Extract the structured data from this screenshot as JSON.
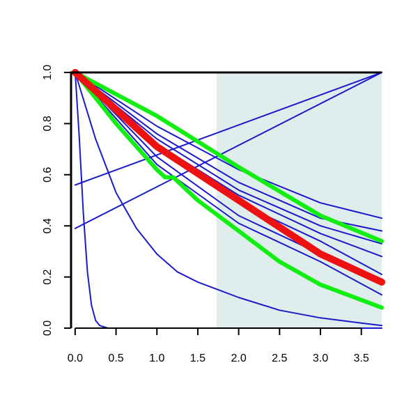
{
  "chart_data": {
    "type": "line",
    "title": "",
    "xlabel": "",
    "ylabel": "",
    "xlim": [
      -0.05,
      3.75
    ],
    "ylim": [
      0.0,
      1.0
    ],
    "x_ticks": [
      0.0,
      0.5,
      1.0,
      1.5,
      2.0,
      2.5,
      3.0,
      3.5
    ],
    "x_tick_labels": [
      "0.0",
      "0.5",
      "1.0",
      "1.5",
      "2.0",
      "2.5",
      "3.0",
      "3.5"
    ],
    "y_ticks": [
      0.0,
      0.2,
      0.4,
      0.6,
      0.8,
      1.0
    ],
    "y_tick_labels": [
      "0.0",
      "0.2",
      "0.4",
      "0.6",
      "0.8",
      "1.0"
    ],
    "grid": false,
    "shaded_region": {
      "x": [
        1.73,
        3.75
      ],
      "color": "#e0eded"
    },
    "colors": {
      "blue": "#1a1acc",
      "red": "#ee1111",
      "green": "#11ee11",
      "axis": "#000000"
    },
    "series": [
      {
        "color": "#1a1acc",
        "width": 2,
        "x": [
          0,
          0.05,
          0.1,
          0.15,
          0.2,
          0.25,
          0.3,
          0.4,
          0.6,
          1,
          2,
          3.75
        ],
        "y": [
          1,
          0.75,
          0.45,
          0.22,
          0.09,
          0.03,
          0.01,
          0,
          0,
          0,
          0,
          0
        ]
      },
      {
        "color": "#1a1acc",
        "width": 2,
        "x": [
          0,
          0.25,
          0.5,
          0.75,
          1,
          1.25,
          1.5,
          1.75,
          2,
          2.5,
          3,
          3.5,
          3.75
        ],
        "y": [
          1,
          0.74,
          0.53,
          0.39,
          0.29,
          0.22,
          0.18,
          0.15,
          0.12,
          0.07,
          0.04,
          0.02,
          0.01
        ]
      },
      {
        "color": "#1a1acc",
        "width": 2,
        "x": [
          0,
          1,
          2,
          3,
          3.75
        ],
        "y": [
          1,
          0.72,
          0.52,
          0.37,
          0.28
        ]
      },
      {
        "color": "#1a1acc",
        "width": 2,
        "x": [
          0,
          1,
          2,
          3,
          3.75
        ],
        "y": [
          1,
          0.79,
          0.62,
          0.49,
          0.43
        ]
      },
      {
        "color": "#1a1acc",
        "width": 2,
        "x": [
          0,
          1,
          2,
          3,
          3.75
        ],
        "y": [
          1,
          0.76,
          0.57,
          0.43,
          0.38
        ]
      },
      {
        "color": "#1a1acc",
        "width": 2,
        "x": [
          0,
          1,
          2,
          3,
          3.75
        ],
        "y": [
          1,
          0.74,
          0.54,
          0.4,
          0.33
        ]
      },
      {
        "color": "#1a1acc",
        "width": 2,
        "x": [
          0,
          1,
          2,
          3,
          3.75
        ],
        "y": [
          1,
          0.7,
          0.49,
          0.34,
          0.21
        ]
      },
      {
        "color": "#1a1acc",
        "width": 2,
        "x": [
          0,
          1,
          2,
          3,
          3.75
        ],
        "y": [
          1,
          0.67,
          0.44,
          0.29,
          0.19
        ]
      },
      {
        "color": "#1a1acc",
        "width": 2,
        "x": [
          0,
          1,
          2,
          3,
          3.75
        ],
        "y": [
          1,
          0.64,
          0.41,
          0.26,
          0.13
        ]
      },
      {
        "color": "#1a1acc",
        "width": 2,
        "x": [
          0,
          3.75
        ],
        "y": [
          0.56,
          1.0
        ]
      },
      {
        "color": "#1a1acc",
        "width": 2,
        "x": [
          0,
          3.75
        ],
        "y": [
          0.39,
          1.0
        ]
      },
      {
        "color": "#11ee11",
        "width": 6,
        "x": [
          0,
          1,
          2,
          3,
          3.75
        ],
        "y": [
          1,
          0.83,
          0.63,
          0.44,
          0.34
        ]
      },
      {
        "color": "#11ee11",
        "width": 6,
        "x": [
          0,
          0.5,
          1,
          1.1,
          1.2,
          1.5,
          2,
          2.5,
          3,
          3.5,
          3.75
        ],
        "y": [
          1,
          0.8,
          0.62,
          0.59,
          0.59,
          0.5,
          0.38,
          0.26,
          0.17,
          0.11,
          0.08
        ]
      },
      {
        "color": "#ee1111",
        "width": 10,
        "x": [
          0,
          1,
          2,
          3,
          3.75
        ],
        "y": [
          1,
          0.71,
          0.5,
          0.29,
          0.18
        ]
      }
    ]
  }
}
